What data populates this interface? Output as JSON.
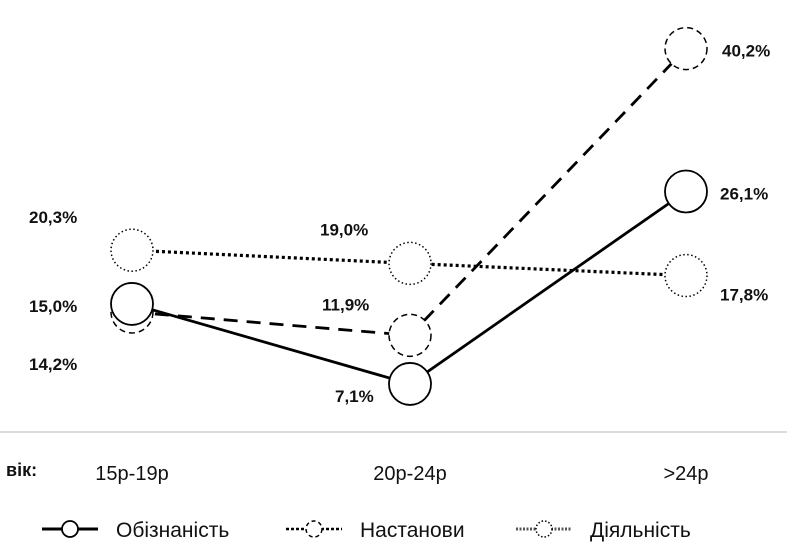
{
  "chart_data": {
    "type": "line",
    "xlabel": "вік:",
    "categories": [
      "15р-19р",
      "20р-24р",
      ">24р"
    ],
    "ylim": [
      0,
      45
    ],
    "grid": false,
    "legend_position": "bottom",
    "series": [
      {
        "name": "Обізнаність",
        "values": [
          15.0,
          7.1,
          26.1
        ],
        "labels": [
          "15,0%",
          "7,1%",
          "26,1%"
        ],
        "line_style": "solid",
        "color": "#000000"
      },
      {
        "name": "Настанови",
        "values": [
          14.2,
          11.9,
          40.2
        ],
        "labels": [
          "14,2%",
          "11,9%",
          "40,2%"
        ],
        "line_style": "dashed",
        "color": "#000000"
      },
      {
        "name": "Діяльність",
        "values": [
          20.3,
          19.0,
          17.8
        ],
        "labels": [
          "20,3%",
          "19,0%",
          "17,8%"
        ],
        "line_style": "dotted",
        "color": "#000000"
      }
    ]
  }
}
